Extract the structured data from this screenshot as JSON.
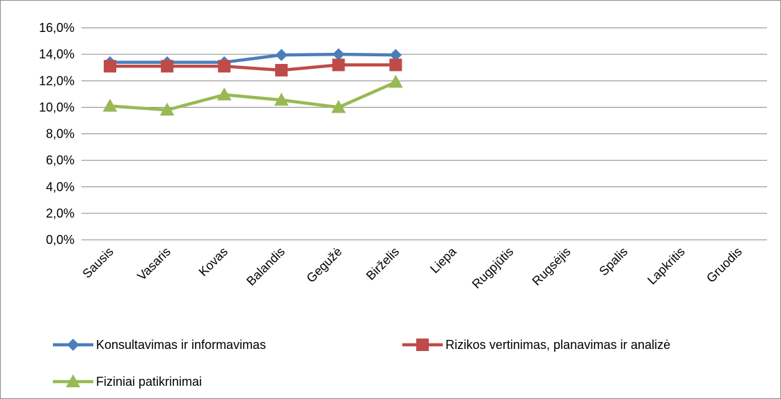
{
  "chart_data": {
    "type": "line",
    "title": "",
    "xlabel": "",
    "ylabel": "",
    "ylim": [
      0,
      16
    ],
    "y_ticks": [
      "0,0%",
      "2,0%",
      "4,0%",
      "6,0%",
      "8,0%",
      "10,0%",
      "12,0%",
      "14,0%",
      "16,0%"
    ],
    "y_tick_values": [
      0,
      2,
      4,
      6,
      8,
      10,
      12,
      14,
      16
    ],
    "grid": "horizontal",
    "legend_position": "bottom",
    "categories": [
      "Sausis",
      "Vasaris",
      "Kovas",
      "Balandis",
      "Gegužė",
      "Birželis",
      "Liepa",
      "Rugpjūtis",
      "Rugsėjis",
      "Spalis",
      "Lapkritis",
      "Gruodis"
    ],
    "series": [
      {
        "name": "Konsultavimas ir informavimas",
        "color": "#4a7ebb",
        "marker": "diamond",
        "values": [
          13.4,
          13.4,
          13.4,
          13.95,
          14.0,
          13.95,
          null,
          null,
          null,
          null,
          null,
          null
        ]
      },
      {
        "name": "Rizikos vertinimas, planavimas ir analizė",
        "color": "#be4b48",
        "marker": "square",
        "values": [
          13.1,
          13.1,
          13.1,
          12.8,
          13.2,
          13.2,
          null,
          null,
          null,
          null,
          null,
          null
        ]
      },
      {
        "name": "Fiziniai patikrinimai",
        "color": "#98b954",
        "marker": "triangle",
        "values": [
          10.1,
          9.8,
          10.95,
          10.55,
          10.0,
          11.9,
          null,
          null,
          null,
          null,
          null,
          null
        ]
      }
    ]
  }
}
